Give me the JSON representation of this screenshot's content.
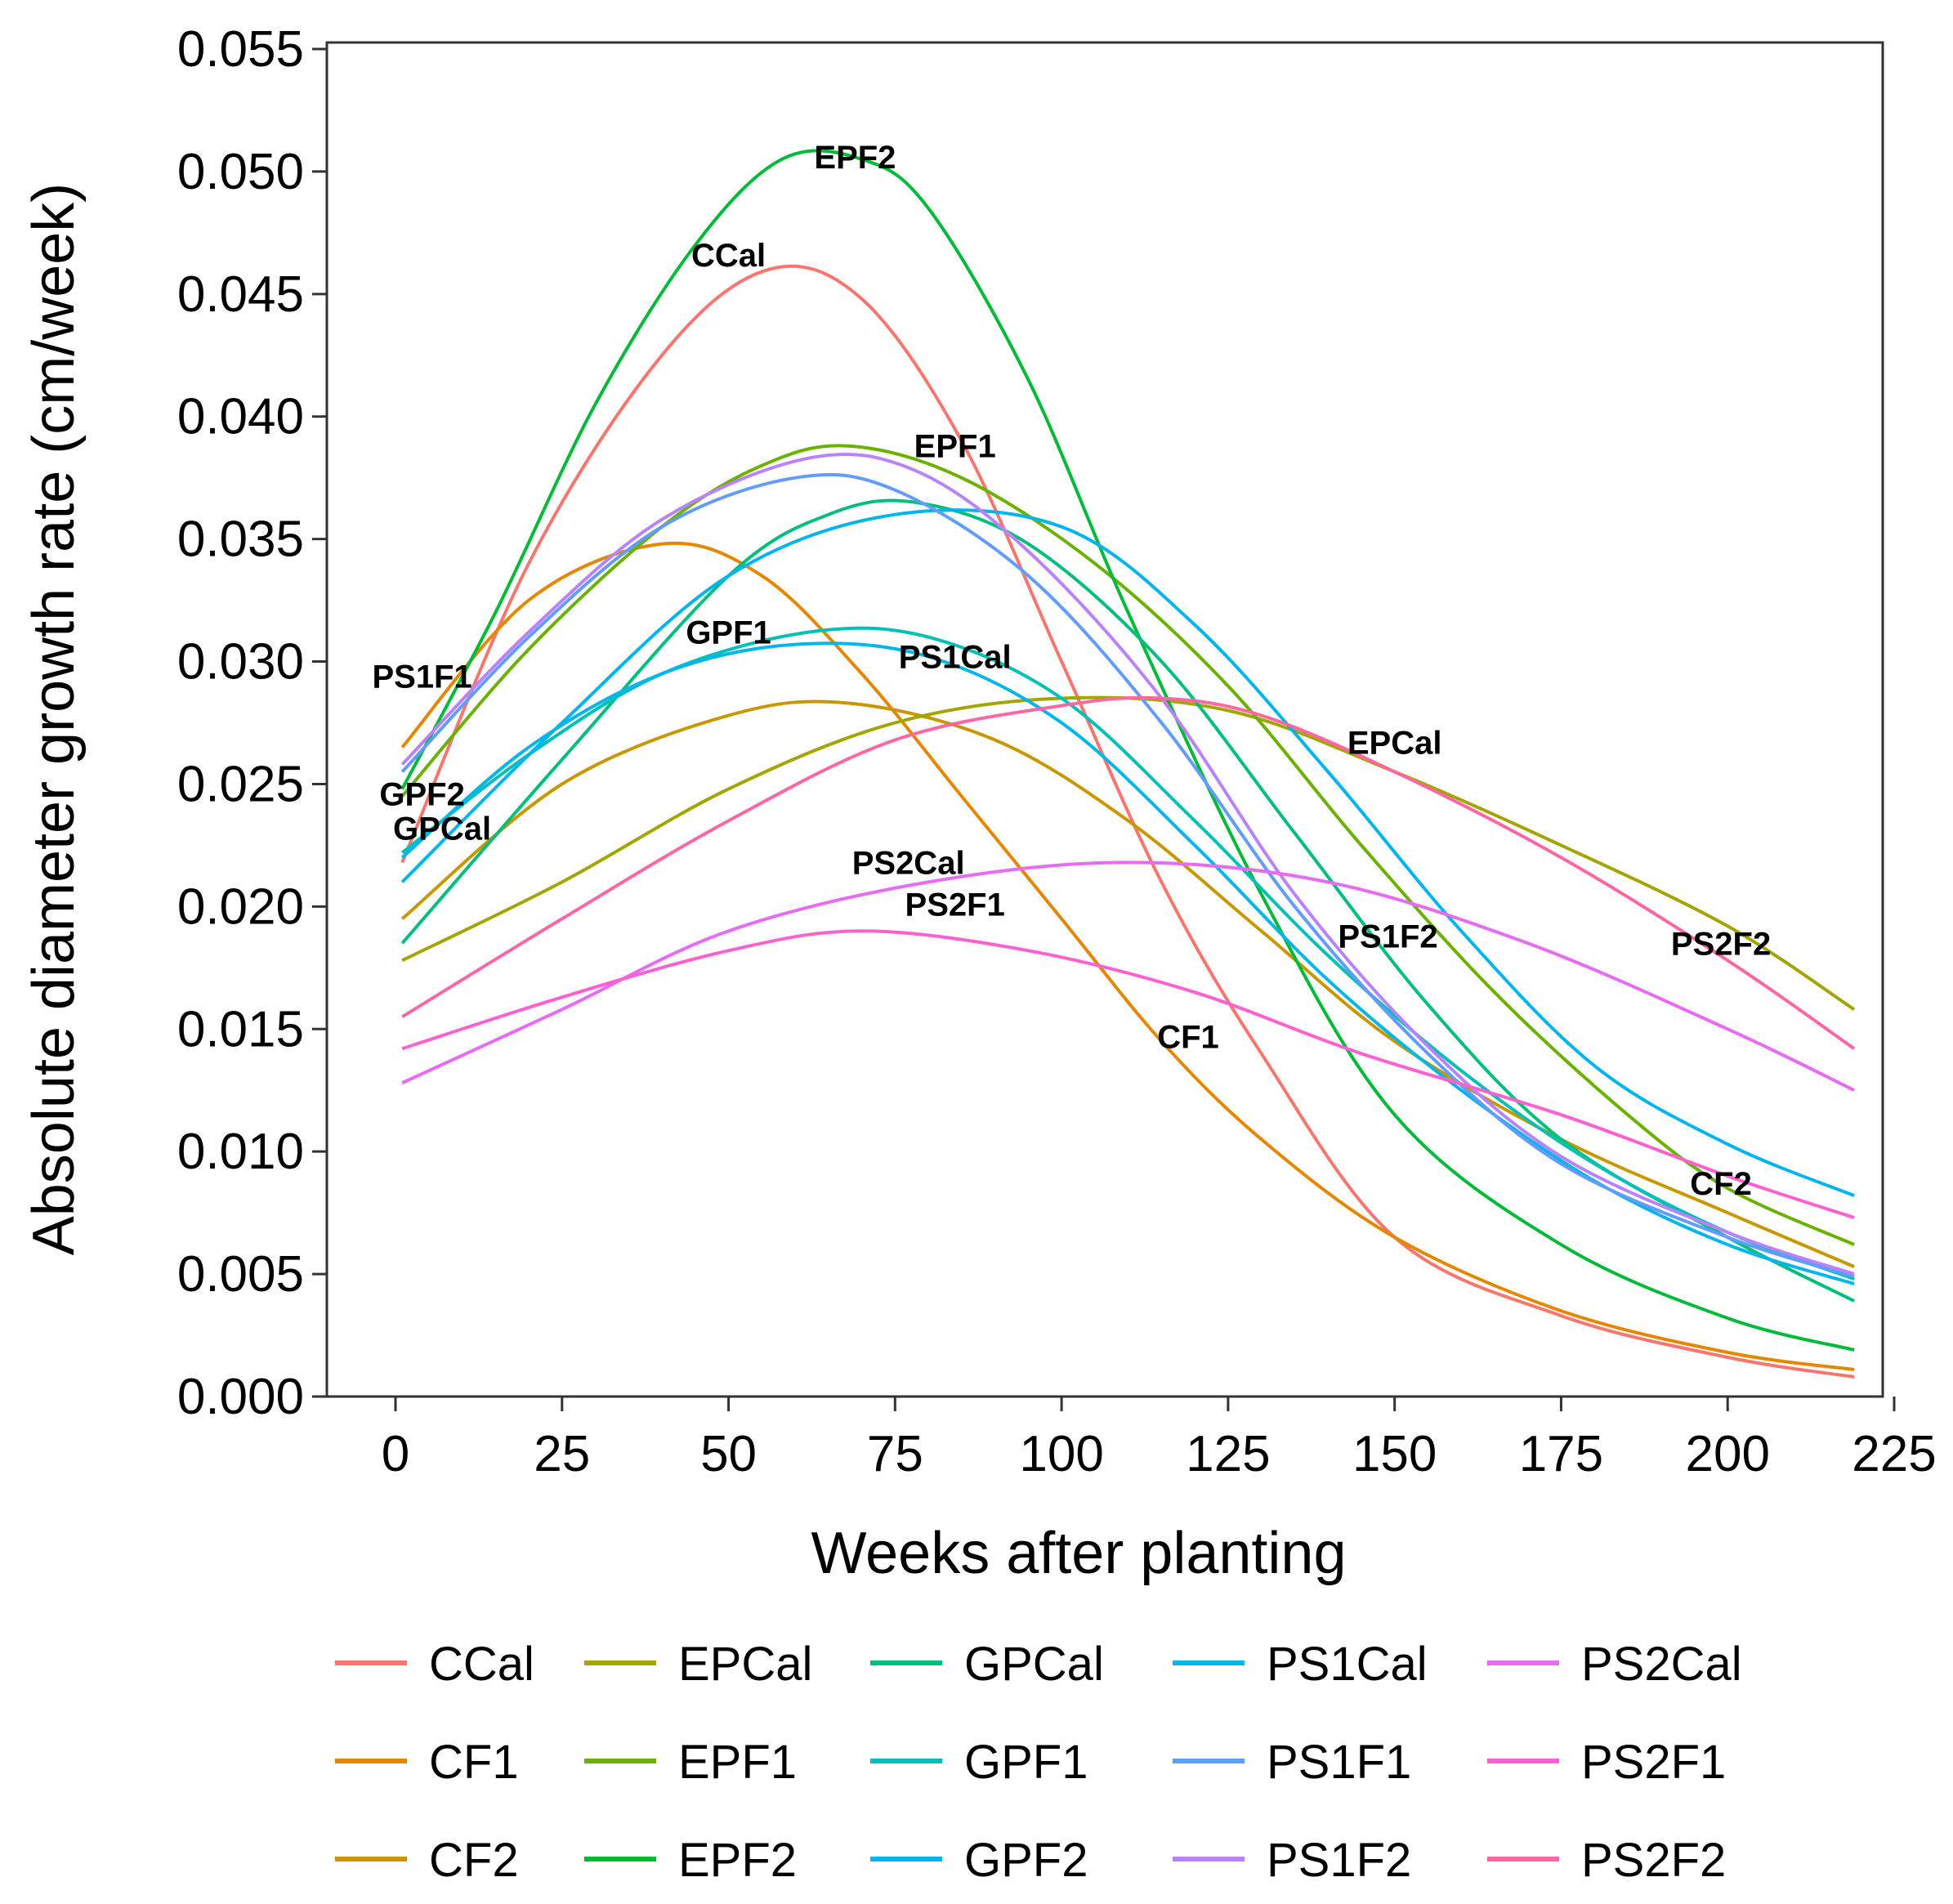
{
  "chart_data": {
    "type": "line",
    "title": "",
    "xlabel": "Weeks after planting",
    "ylabel": "Absolute diameter growth rate (cm/week)",
    "xlim": [
      -10,
      227
    ],
    "ylim": [
      0,
      0.055
    ],
    "xticks": [
      "0",
      "25",
      "50",
      "75",
      "100",
      "125",
      "150",
      "175",
      "200",
      "225"
    ],
    "yticks": [
      "0.000",
      "0.005",
      "0.010",
      "0.015",
      "0.020",
      "0.025",
      "0.030",
      "0.035",
      "0.040",
      "0.045",
      "0.050",
      "0.055"
    ],
    "xtick_values": [
      0,
      25,
      50,
      75,
      100,
      125,
      150,
      175,
      200,
      225
    ],
    "ytick_values": [
      0,
      0.005,
      0.01,
      0.015,
      0.02,
      0.025,
      0.03,
      0.035,
      0.04,
      0.045,
      0.05,
      0.055
    ],
    "grid": false,
    "legend_position": "bottom",
    "series": [
      {
        "name": "CCal",
        "color": "#F8766D",
        "x": [
          1,
          20,
          40,
          56,
          70,
          85,
          100,
          115,
          130,
          150,
          175,
          200,
          219
        ],
        "values": [
          0.0218,
          0.034,
          0.0425,
          0.046,
          0.0448,
          0.039,
          0.03,
          0.021,
          0.014,
          0.0065,
          0.0033,
          0.0016,
          0.0008
        ]
      },
      {
        "name": "CF1",
        "color": "#E58700",
        "x": [
          1,
          20,
          40,
          55,
          70,
          85,
          100,
          115,
          130,
          150,
          175,
          200,
          219
        ],
        "values": [
          0.0265,
          0.0325,
          0.0348,
          0.0335,
          0.0295,
          0.0245,
          0.0195,
          0.0145,
          0.0105,
          0.0065,
          0.0035,
          0.0018,
          0.0011
        ]
      },
      {
        "name": "CF2",
        "color": "#C99800",
        "x": [
          1,
          25,
          50,
          68,
          90,
          110,
          130,
          150,
          175,
          200,
          219
        ],
        "values": [
          0.0195,
          0.025,
          0.0278,
          0.0283,
          0.0268,
          0.0235,
          0.019,
          0.0145,
          0.0105,
          0.0075,
          0.0053
        ]
      },
      {
        "name": "EPCal",
        "color": "#A3A500",
        "x": [
          1,
          25,
          50,
          75,
          100,
          125,
          150,
          175,
          200,
          219
        ],
        "values": [
          0.0178,
          0.021,
          0.0248,
          0.0275,
          0.0285,
          0.028,
          0.0255,
          0.0225,
          0.0192,
          0.0158
        ]
      },
      {
        "name": "EPF1",
        "color": "#6BB100",
        "x": [
          1,
          20,
          40,
          55,
          68,
          85,
          105,
          125,
          145,
          165,
          185,
          200,
          219
        ],
        "values": [
          0.0245,
          0.0305,
          0.0355,
          0.038,
          0.0388,
          0.0375,
          0.034,
          0.029,
          0.0225,
          0.0165,
          0.0115,
          0.0085,
          0.0062
        ]
      },
      {
        "name": "EPF2",
        "color": "#00BA38",
        "x": [
          1,
          15,
          30,
          45,
          58,
          70,
          80,
          95,
          110,
          130,
          150,
          175,
          200,
          219
        ],
        "values": [
          0.0248,
          0.032,
          0.0405,
          0.047,
          0.0505,
          0.0505,
          0.0485,
          0.0415,
          0.032,
          0.0205,
          0.0115,
          0.0062,
          0.0032,
          0.0019
        ]
      },
      {
        "name": "GPCal",
        "color": "#00BF7D",
        "x": [
          1,
          25,
          50,
          65,
          78,
          95,
          115,
          135,
          155,
          175,
          200,
          219
        ],
        "values": [
          0.0185,
          0.026,
          0.0335,
          0.036,
          0.0365,
          0.0348,
          0.03,
          0.023,
          0.016,
          0.0105,
          0.0065,
          0.0039
        ]
      },
      {
        "name": "GPF1",
        "color": "#00C0B8",
        "x": [
          1,
          20,
          40,
          62,
          80,
          100,
          120,
          140,
          160,
          180,
          200,
          219
        ],
        "values": [
          0.0222,
          0.0262,
          0.0295,
          0.0312,
          0.031,
          0.0285,
          0.0235,
          0.018,
          0.0133,
          0.0095,
          0.0067,
          0.0048
        ]
      },
      {
        "name": "GPF2",
        "color": "#00B4EF",
        "x": [
          1,
          25,
          50,
          75,
          100,
          120,
          140,
          160,
          180,
          200,
          219
        ],
        "values": [
          0.021,
          0.0275,
          0.0335,
          0.036,
          0.0355,
          0.0315,
          0.0255,
          0.019,
          0.0135,
          0.0103,
          0.0082
        ]
      },
      {
        "name": "PS1Cal",
        "color": "#00B6EB",
        "x": [
          1,
          20,
          40,
          60,
          80,
          100,
          120,
          140,
          160,
          180,
          200,
          219
        ],
        "values": [
          0.022,
          0.0265,
          0.0295,
          0.0307,
          0.0302,
          0.0275,
          0.0225,
          0.017,
          0.0125,
          0.0088,
          0.0062,
          0.0046
        ]
      },
      {
        "name": "PS1F1",
        "color": "#619CFF",
        "x": [
          1,
          20,
          40,
          60,
          75,
          95,
          115,
          135,
          155,
          175,
          200,
          219
        ],
        "values": [
          0.0255,
          0.031,
          0.0355,
          0.0375,
          0.037,
          0.0335,
          0.0275,
          0.02,
          0.014,
          0.0095,
          0.0065,
          0.0049
        ]
      },
      {
        "name": "PS1F2",
        "color": "#B983FF",
        "x": [
          1,
          20,
          40,
          62,
          78,
          95,
          115,
          135,
          155,
          175,
          200,
          219
        ],
        "values": [
          0.0258,
          0.0312,
          0.0358,
          0.0383,
          0.0378,
          0.0345,
          0.0285,
          0.0205,
          0.0143,
          0.0098,
          0.0067,
          0.005
        ]
      },
      {
        "name": "PS2Cal",
        "color": "#E76BF3",
        "x": [
          1,
          25,
          50,
          80,
          110,
          140,
          170,
          200,
          219
        ],
        "values": [
          0.0128,
          0.0158,
          0.019,
          0.021,
          0.0218,
          0.021,
          0.0185,
          0.015,
          0.0125
        ]
      },
      {
        "name": "PS2F1",
        "color": "#FD61D1",
        "x": [
          1,
          25,
          50,
          70,
          95,
          120,
          145,
          175,
          200,
          219
        ],
        "values": [
          0.0142,
          0.0163,
          0.0182,
          0.019,
          0.0182,
          0.0165,
          0.014,
          0.0115,
          0.009,
          0.0073
        ]
      },
      {
        "name": "PS2F2",
        "color": "#FF67A4",
        "x": [
          1,
          25,
          50,
          75,
          100,
          115,
          130,
          150,
          175,
          200,
          219
        ],
        "values": [
          0.0155,
          0.0195,
          0.0235,
          0.0268,
          0.0282,
          0.0285,
          0.0278,
          0.0255,
          0.022,
          0.0178,
          0.0142
        ]
      }
    ],
    "curve_labels": [
      {
        "text": "EPF2",
        "x": 69,
        "y": 0.0506
      },
      {
        "text": "CCal",
        "x": 50,
        "y": 0.0466
      },
      {
        "text": "EPF1",
        "x": 84,
        "y": 0.0388
      },
      {
        "text": "GPF1",
        "x": 50,
        "y": 0.0312
      },
      {
        "text": "PS1Cal",
        "x": 84,
        "y": 0.0302
      },
      {
        "text": "PS1F1",
        "x": 4,
        "y": 0.0294
      },
      {
        "text": "EPCal",
        "x": 150,
        "y": 0.0267
      },
      {
        "text": "GPF2",
        "x": 4,
        "y": 0.0246
      },
      {
        "text": "GPCal",
        "x": 7,
        "y": 0.0232
      },
      {
        "text": "PS2Cal",
        "x": 77,
        "y": 0.0218
      },
      {
        "text": "PS2F1",
        "x": 84,
        "y": 0.0201
      },
      {
        "text": "PS1F2",
        "x": 149,
        "y": 0.0188
      },
      {
        "text": "PS2F2",
        "x": 199,
        "y": 0.0185
      },
      {
        "text": "CF1",
        "x": 119,
        "y": 0.0147
      },
      {
        "text": "CF2",
        "x": 199,
        "y": 0.0087
      }
    ]
  }
}
